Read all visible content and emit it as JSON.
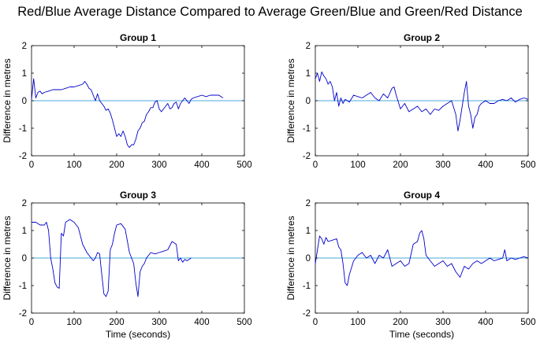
{
  "title": "Red/Blue Average Distance Compared to Average Green/Blue and Green/Red Distance",
  "chart_data": [
    {
      "type": "line",
      "title": "Group 1",
      "xlabel": "",
      "ylabel": "Difference in metres",
      "xlim": [
        0,
        500
      ],
      "ylim": [
        -2,
        2
      ],
      "xticks": [
        0,
        100,
        200,
        300,
        400,
        500
      ],
      "yticks": [
        -2,
        -1,
        0,
        1,
        2
      ],
      "zero_line": true,
      "colors": {
        "series": "#0000cc",
        "zero_line": "#4aa8d8"
      },
      "series": [
        {
          "x": [
            0,
            5,
            10,
            15,
            20,
            25,
            30,
            40,
            50,
            60,
            70,
            80,
            90,
            100,
            110,
            120,
            125,
            130,
            135,
            140,
            145,
            150,
            155,
            160,
            165,
            170,
            175,
            180,
            185,
            190,
            195,
            200,
            205,
            210,
            215,
            220,
            225,
            230,
            235,
            240,
            245,
            250,
            255,
            260,
            265,
            270,
            275,
            280,
            285,
            290,
            295,
            300,
            305,
            310,
            315,
            320,
            325,
            330,
            335,
            340,
            345,
            350,
            355,
            360,
            365,
            370,
            375,
            380,
            390,
            400,
            410,
            420,
            430,
            440,
            450
          ],
          "y": [
            0.05,
            0.8,
            0.1,
            0.3,
            0.35,
            0.25,
            0.3,
            0.35,
            0.4,
            0.4,
            0.4,
            0.45,
            0.5,
            0.5,
            0.55,
            0.6,
            0.7,
            0.6,
            0.45,
            0.4,
            0.2,
            0.0,
            0.25,
            0.0,
            -0.1,
            -0.2,
            -0.35,
            -0.3,
            -0.45,
            -0.7,
            -1.0,
            -1.3,
            -1.2,
            -1.3,
            -1.1,
            -1.3,
            -1.6,
            -1.7,
            -1.6,
            -1.6,
            -1.4,
            -1.1,
            -1.0,
            -0.8,
            -0.75,
            -0.5,
            -0.4,
            -0.25,
            -0.25,
            -0.05,
            0.0,
            -0.3,
            -0.4,
            -0.3,
            -0.2,
            -0.1,
            -0.3,
            -0.25,
            -0.1,
            -0.05,
            -0.3,
            -0.1,
            0.0,
            0.1,
            0.0,
            -0.1,
            0.05,
            0.1,
            0.15,
            0.2,
            0.15,
            0.2,
            0.2,
            0.2,
            0.1
          ]
        }
      ]
    },
    {
      "type": "line",
      "title": "Group 2",
      "xlabel": "",
      "ylabel": "Difference in metres",
      "xlim": [
        0,
        500
      ],
      "ylim": [
        -2,
        2
      ],
      "xticks": [
        0,
        100,
        200,
        300,
        400,
        500
      ],
      "yticks": [
        -2,
        -1,
        0,
        1,
        2
      ],
      "zero_line": true,
      "colors": {
        "series": "#0000cc",
        "zero_line": "#4aa8d8"
      },
      "series": [
        {
          "x": [
            0,
            5,
            10,
            15,
            20,
            25,
            30,
            35,
            40,
            45,
            50,
            55,
            60,
            65,
            70,
            80,
            90,
            100,
            110,
            120,
            130,
            140,
            150,
            160,
            170,
            180,
            185,
            190,
            200,
            210,
            220,
            230,
            240,
            250,
            260,
            270,
            280,
            290,
            300,
            310,
            320,
            330,
            335,
            340,
            345,
            350,
            355,
            360,
            365,
            370,
            375,
            380,
            385,
            390,
            400,
            410,
            420,
            430,
            440,
            450,
            460,
            470,
            480,
            490,
            500
          ],
          "y": [
            0.8,
            1.0,
            0.7,
            1.05,
            0.9,
            0.8,
            0.6,
            0.7,
            0.5,
            0.0,
            0.3,
            -0.2,
            0.1,
            -0.1,
            0.05,
            -0.05,
            0.2,
            0.15,
            0.1,
            0.2,
            0.3,
            0.1,
            0.0,
            0.25,
            0.1,
            0.45,
            0.5,
            0.2,
            -0.3,
            -0.1,
            -0.4,
            -0.3,
            -0.2,
            -0.4,
            -0.3,
            -0.5,
            -0.3,
            -0.35,
            -0.2,
            -0.1,
            0.0,
            -0.5,
            -1.1,
            -0.7,
            -0.2,
            0.3,
            0.7,
            -0.2,
            -0.5,
            -1.0,
            -0.6,
            -0.5,
            -0.2,
            -0.1,
            0.0,
            -0.1,
            -0.1,
            0.0,
            0.05,
            0.0,
            0.1,
            -0.05,
            0.05,
            0.1,
            0.05
          ]
        }
      ]
    },
    {
      "type": "line",
      "title": "Group 3",
      "xlabel": "Time (seconds)",
      "ylabel": "Difference in metres",
      "xlim": [
        0,
        500
      ],
      "ylim": [
        -2,
        2
      ],
      "xticks": [
        0,
        100,
        200,
        300,
        400,
        500
      ],
      "yticks": [
        -2,
        -1,
        0,
        1,
        2
      ],
      "zero_line": true,
      "colors": {
        "series": "#0000cc",
        "zero_line": "#4aa8d8"
      },
      "series": [
        {
          "x": [
            0,
            10,
            20,
            30,
            35,
            40,
            45,
            50,
            55,
            60,
            65,
            70,
            75,
            80,
            90,
            100,
            110,
            120,
            130,
            140,
            145,
            150,
            155,
            160,
            165,
            170,
            175,
            180,
            185,
            190,
            195,
            200,
            210,
            220,
            230,
            240,
            245,
            250,
            255,
            260,
            265,
            270,
            280,
            290,
            300,
            310,
            320,
            330,
            340,
            345,
            350,
            355,
            360,
            365,
            370,
            375
          ],
          "y": [
            1.3,
            1.3,
            1.2,
            1.2,
            1.3,
            1.0,
            0.0,
            -0.4,
            -0.9,
            -1.05,
            -1.1,
            0.9,
            0.8,
            1.3,
            1.4,
            1.3,
            1.1,
            0.5,
            0.2,
            0.0,
            -0.1,
            0.0,
            0.2,
            0.15,
            -0.6,
            -1.3,
            -1.4,
            -1.2,
            0.3,
            0.5,
            0.9,
            1.2,
            1.25,
            1.05,
            0.2,
            -0.2,
            -0.9,
            -1.4,
            -0.5,
            -0.3,
            -0.2,
            0.0,
            0.2,
            0.15,
            0.2,
            0.25,
            0.3,
            0.6,
            0.5,
            -0.1,
            0.0,
            -0.15,
            -0.05,
            -0.1,
            -0.05,
            0.0
          ]
        }
      ]
    },
    {
      "type": "line",
      "title": "Group 4",
      "xlabel": "Time (seconds)",
      "ylabel": "Difference in metres",
      "xlim": [
        0,
        500
      ],
      "ylim": [
        -2,
        2
      ],
      "xticks": [
        0,
        100,
        200,
        300,
        400,
        500
      ],
      "yticks": [
        -2,
        -1,
        0,
        1,
        2
      ],
      "zero_line": true,
      "colors": {
        "series": "#0000cc",
        "zero_line": "#4aa8d8"
      },
      "series": [
        {
          "x": [
            0,
            5,
            10,
            15,
            20,
            25,
            30,
            40,
            50,
            55,
            60,
            65,
            70,
            75,
            80,
            90,
            100,
            110,
            120,
            130,
            140,
            150,
            160,
            170,
            180,
            190,
            200,
            210,
            220,
            230,
            240,
            245,
            250,
            255,
            260,
            270,
            280,
            290,
            300,
            310,
            320,
            330,
            340,
            350,
            360,
            370,
            380,
            390,
            400,
            410,
            420,
            430,
            440,
            445,
            450,
            460,
            470,
            480,
            490,
            500
          ],
          "y": [
            -0.2,
            0.3,
            0.8,
            0.7,
            0.5,
            0.75,
            0.6,
            0.65,
            0.7,
            0.4,
            0.3,
            -0.2,
            -0.9,
            -1.0,
            -0.6,
            -0.1,
            0.1,
            0.2,
            0.0,
            0.1,
            -0.2,
            0.1,
            0.0,
            0.3,
            -0.3,
            -0.2,
            -0.1,
            -0.3,
            -0.2,
            0.5,
            0.6,
            0.9,
            1.0,
            0.7,
            0.1,
            -0.1,
            -0.3,
            -0.2,
            -0.1,
            -0.3,
            -0.2,
            -0.5,
            -0.7,
            -0.3,
            -0.4,
            -0.2,
            -0.1,
            -0.2,
            -0.1,
            0.0,
            -0.1,
            -0.05,
            0.0,
            0.3,
            -0.1,
            0.0,
            -0.05,
            0.0,
            0.05,
            0.0
          ]
        }
      ]
    }
  ]
}
